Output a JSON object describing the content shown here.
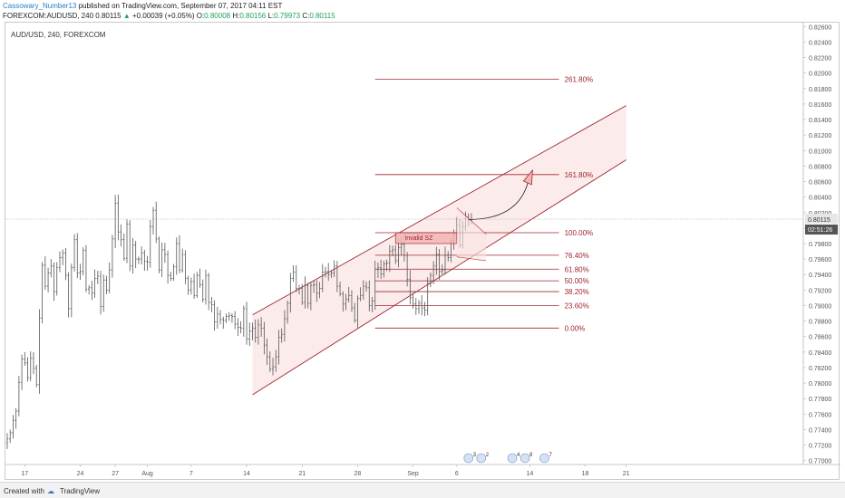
{
  "header": {
    "username": "Cassowary_Number13",
    "published_text": " published on TradingView.com, September 07, 2017 04:11 EST",
    "symbol": "FOREXCOM:AUDUSD, 240",
    "last_price": "0.80115",
    "change_arrow": "▲",
    "change": "+0.00039 (+0.05%)",
    "o_label": "O:",
    "o_value": "0.80008",
    "h_label": "H:",
    "h_value": "0.80156",
    "l_label": "L:",
    "l_value": "0.79973",
    "c_label": "C:",
    "c_value": "0.80115"
  },
  "footer": {
    "created_with": "Created with",
    "brand": "TradingView"
  },
  "colors": {
    "fib": "#a0262f",
    "channel_fill": "#fbe4e4",
    "bars": "#555555",
    "axis_text": "#555555"
  },
  "chart_data": {
    "type": "ohlc",
    "title": "AUD/USD, 240, FOREXCOM",
    "ylim": [
      0.7695,
      0.8265
    ],
    "y_ticks": [
      "0.82600",
      "0.82400",
      "0.82200",
      "0.82000",
      "0.81800",
      "0.81600",
      "0.81400",
      "0.81200",
      "0.81000",
      "0.80800",
      "0.80600",
      "0.80400",
      "0.80200",
      "0.80000",
      "0.79800",
      "0.79600",
      "0.79400",
      "0.79200",
      "0.79000",
      "0.78800",
      "0.78600",
      "0.78400",
      "0.78200",
      "0.78000",
      "0.77800",
      "0.77600",
      "0.77400",
      "0.77200",
      "0.77000"
    ],
    "x_ticks": [
      {
        "label": "17",
        "i": 6
      },
      {
        "label": "24",
        "i": 25
      },
      {
        "label": "27",
        "i": 37
      },
      {
        "label": "Aug",
        "i": 48
      },
      {
        "label": "7",
        "i": 63
      },
      {
        "label": "14",
        "i": 82
      },
      {
        "label": "21",
        "i": 101
      },
      {
        "label": "28",
        "i": 120
      },
      {
        "label": "Sep",
        "i": 139
      },
      {
        "label": "6",
        "i": 154
      },
      {
        "label": "14",
        "i": 179
      },
      {
        "label": "18",
        "i": 198
      },
      {
        "label": "21",
        "i": 212
      }
    ],
    "current_price": "0.80115",
    "countdown": "02:51:26",
    "closes": [
      0.7728,
      0.7736,
      0.7752,
      0.7764,
      0.7801,
      0.7831,
      0.7826,
      0.7807,
      0.7832,
      0.7819,
      0.7798,
      0.7884,
      0.7952,
      0.7925,
      0.7942,
      0.7951,
      0.7918,
      0.7949,
      0.7962,
      0.7968,
      0.7939,
      0.7896,
      0.7949,
      0.7985,
      0.7942,
      0.7944,
      0.7971,
      0.7921,
      0.7923,
      0.7916,
      0.7935,
      0.7938,
      0.7899,
      0.7933,
      0.792,
      0.7946,
      0.7986,
      0.8032,
      0.7995,
      0.7985,
      0.7961,
      0.8005,
      0.7951,
      0.7978,
      0.796,
      0.796,
      0.7968,
      0.7957,
      0.7956,
      0.8002,
      0.8023,
      0.7986,
      0.7946,
      0.7972,
      0.7966,
      0.7939,
      0.7935,
      0.795,
      0.798,
      0.7946,
      0.7966,
      0.7935,
      0.792,
      0.7931,
      0.7913,
      0.7939,
      0.7927,
      0.7908,
      0.7939,
      0.7904,
      0.7901,
      0.7879,
      0.7889,
      0.7882,
      0.7881,
      0.7886,
      0.7887,
      0.7886,
      0.7876,
      0.7872,
      0.7871,
      0.7896,
      0.7857,
      0.7867,
      0.7871,
      0.7859,
      0.7875,
      0.7871,
      0.7849,
      0.7834,
      0.7818,
      0.7821,
      0.7834,
      0.7859,
      0.7863,
      0.7883,
      0.7903,
      0.7935,
      0.7943,
      0.7922,
      0.7922,
      0.7904,
      0.7926,
      0.7903,
      0.7926,
      0.7927,
      0.7916,
      0.7922,
      0.7943,
      0.7944,
      0.794,
      0.7942,
      0.7951,
      0.7925,
      0.7915,
      0.7902,
      0.7908,
      0.7913,
      0.7897,
      0.7881,
      0.7909,
      0.7913,
      0.7925,
      0.7923,
      0.79,
      0.7906,
      0.7947,
      0.7949,
      0.7941,
      0.7954,
      0.7955,
      0.797,
      0.7972,
      0.7958,
      0.7975,
      0.7979,
      0.7965,
      0.7934,
      0.791,
      0.7902,
      0.7896,
      0.7903,
      0.7897,
      0.7894,
      0.7928,
      0.7939,
      0.7951,
      0.7966,
      0.7944,
      0.7946,
      0.7965,
      0.7962,
      0.7984,
      0.7992,
      0.8004,
      0.7978,
      0.8002,
      0.8014,
      0.801,
      0.8011
    ],
    "channel": {
      "upper": [
        {
          "i": 84,
          "y": 0.7888
        },
        {
          "i": 212,
          "y": 0.8158
        }
      ],
      "lower": [
        {
          "i": 84,
          "y": 0.7785
        },
        {
          "i": 212,
          "y": 0.8088
        }
      ],
      "fill_from_i": 84,
      "fill_to_i": 212
    },
    "fib_levels": [
      {
        "label": "261.80%",
        "price": 0.8192
      },
      {
        "label": "161.80%",
        "price": 0.8069
      },
      {
        "label": "100.00%",
        "price": 0.7994
      },
      {
        "label": "76.40%",
        "price": 0.7965
      },
      {
        "label": "61.80%",
        "price": 0.7947
      },
      {
        "label": "50.00%",
        "price": 0.7932
      },
      {
        "label": "38.20%",
        "price": 0.7918
      },
      {
        "label": "23.60%",
        "price": 0.79
      },
      {
        "label": "0.00%",
        "price": 0.7871
      }
    ],
    "fib_x_from_i": 126,
    "fib_x_to_i": 189,
    "zone": {
      "label": "Invalid SZ",
      "i_from": 133,
      "i_to": 154,
      "top": 0.7994,
      "bottom": 0.798
    },
    "projection_arc": {
      "from": {
        "i": 158,
        "y": 0.8011
      },
      "to": {
        "i": 179,
        "y": 0.807
      }
    },
    "triangle": {
      "apex_i": 154,
      "apex_y": 0.8026,
      "left_low_i": 154,
      "left_low_y": 0.7963,
      "right_i": 164,
      "right_y_top": 0.7992,
      "right_y_bot": 0.7958
    },
    "events": [
      {
        "i": 158,
        "labels": [
          "3",
          "2"
        ]
      },
      {
        "i": 173,
        "labels": [
          "4",
          "8"
        ]
      },
      {
        "i": 184,
        "labels": [
          "7"
        ]
      }
    ]
  }
}
